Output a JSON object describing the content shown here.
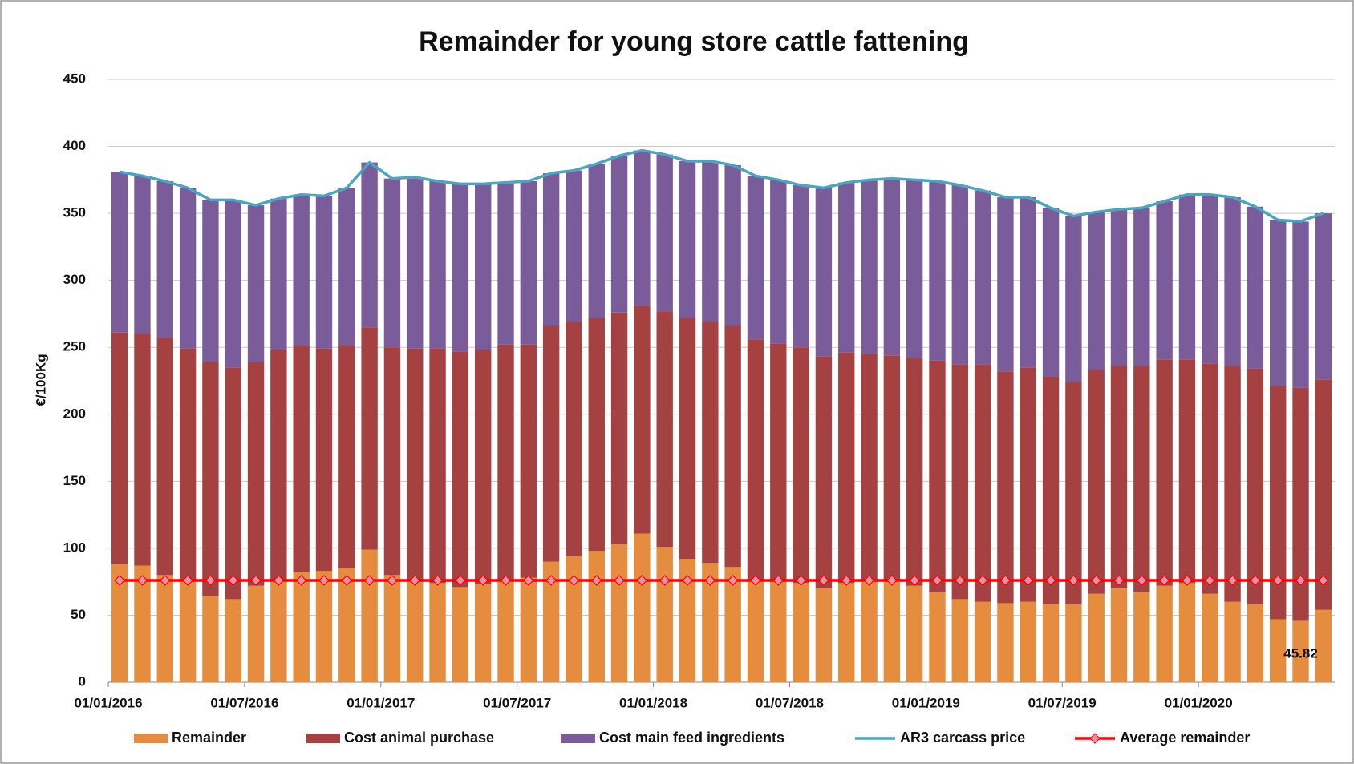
{
  "chart_data": {
    "type": "bar",
    "stacked": true,
    "title": "Remainder for young store cattle fattening",
    "y_label": "€/100Kg",
    "categories": [
      "01/01/2016",
      null,
      null,
      null,
      null,
      null,
      "01/07/2016",
      null,
      null,
      null,
      null,
      null,
      "01/01/2017",
      null,
      null,
      null,
      null,
      null,
      "01/07/2017",
      null,
      null,
      null,
      null,
      null,
      "01/01/2018",
      null,
      null,
      null,
      null,
      null,
      "01/07/2018",
      null,
      null,
      null,
      null,
      null,
      "01/01/2019",
      null,
      null,
      null,
      null,
      null,
      "01/07/2019",
      null,
      null,
      null,
      null,
      null,
      "01/01/2020",
      null,
      null,
      null,
      null,
      null
    ],
    "ylim": [
      0,
      450
    ],
    "yticks": [
      0,
      50,
      100,
      150,
      200,
      250,
      300,
      350,
      400,
      450
    ],
    "grid": true,
    "legend": "bottom",
    "series": [
      {
        "name": "Remainder",
        "color": "#e58c3e",
        "values": [
          88,
          87,
          80,
          75,
          64,
          62,
          72,
          75,
          82,
          83,
          85,
          99,
          80,
          76,
          74,
          71,
          73,
          76,
          78,
          90,
          94,
          98,
          103,
          111,
          101,
          92,
          89,
          86,
          76,
          75,
          74,
          70,
          74,
          75,
          75,
          72,
          67,
          62,
          60,
          59,
          60,
          58,
          58,
          66,
          70,
          67,
          72,
          74,
          66,
          60,
          58,
          47,
          45.82,
          54
        ]
      },
      {
        "name": "Cost animal purchase",
        "color": "#a64141",
        "values": [
          173,
          173,
          177,
          174,
          175,
          173,
          167,
          173,
          169,
          166,
          166,
          166,
          170,
          173,
          175,
          176,
          175,
          176,
          174,
          176,
          175,
          174,
          173,
          170,
          176,
          180,
          180,
          180,
          180,
          178,
          176,
          173,
          172,
          170,
          169,
          170,
          173,
          175,
          177,
          173,
          175,
          170,
          166,
          167,
          166,
          169,
          169,
          167,
          172,
          176,
          176,
          174,
          174,
          172
        ]
      },
      {
        "name": "Cost main feed ingredients",
        "color": "#7b5c9b",
        "values": [
          120,
          118,
          117,
          120,
          121,
          125,
          117,
          113,
          113,
          114,
          118,
          123,
          126,
          128,
          125,
          125,
          124,
          121,
          122,
          114,
          113,
          115,
          117,
          116,
          117,
          117,
          120,
          120,
          122,
          122,
          121,
          126,
          127,
          130,
          132,
          133,
          134,
          134,
          130,
          130,
          127,
          126,
          124,
          118,
          117,
          118,
          118,
          123,
          126,
          126,
          121,
          124,
          124,
          124
        ]
      },
      {
        "name": "AR3 carcass price",
        "type": "line",
        "color": "#4aa5c0",
        "values": [
          381,
          378,
          374,
          369,
          360,
          360,
          356,
          361,
          364,
          363,
          369,
          388,
          376,
          377,
          374,
          372,
          372,
          373,
          374,
          380,
          382,
          387,
          393,
          397,
          394,
          389,
          389,
          386,
          378,
          375,
          371,
          369,
          373,
          375,
          376,
          375,
          374,
          371,
          367,
          362,
          362,
          354,
          348,
          351,
          353,
          354,
          359,
          364,
          364,
          362,
          355,
          345,
          344,
          350
        ]
      },
      {
        "name": "Average remainder",
        "type": "line",
        "color": "#ff0000",
        "marker": "diamond",
        "marker_color": "#e891a6",
        "values": [
          76,
          76,
          76,
          76,
          76,
          76,
          76,
          76,
          76,
          76,
          76,
          76,
          76,
          76,
          76,
          76,
          76,
          76,
          76,
          76,
          76,
          76,
          76,
          76,
          76,
          76,
          76,
          76,
          76,
          76,
          76,
          76,
          76,
          76,
          76,
          76,
          76,
          76,
          76,
          76,
          76,
          76,
          76,
          76,
          76,
          76,
          76,
          76,
          76,
          76,
          76,
          76,
          76,
          76
        ]
      }
    ],
    "labeled_points": [
      "chart_data.series.0.values.52"
    ]
  }
}
